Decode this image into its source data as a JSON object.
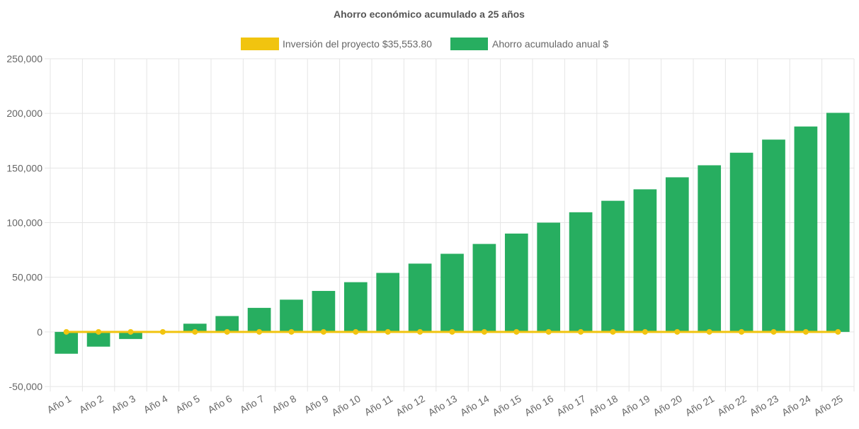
{
  "chart_data": {
    "type": "bar",
    "title": "Ahorro económico acumulado a 25 años",
    "categories": [
      "Año 1",
      "Año 2",
      "Año 3",
      "Año 4",
      "Año 5",
      "Año 6",
      "Año 7",
      "Año 8",
      "Año 9",
      "Año 10",
      "Año 11",
      "Año 12",
      "Año 13",
      "Año 14",
      "Año 15",
      "Año 16",
      "Año 17",
      "Año 18",
      "Año 19",
      "Año 20",
      "Año 21",
      "Año 22",
      "Año 23",
      "Año 24",
      "Año 25"
    ],
    "series": [
      {
        "name": "Inversión del proyecto $35,553.80",
        "type": "line",
        "color": "#f1c40f",
        "values": [
          0,
          0,
          0,
          0,
          0,
          0,
          0,
          0,
          0,
          0,
          0,
          0,
          0,
          0,
          0,
          0,
          0,
          0,
          0,
          0,
          0,
          0,
          0,
          0,
          0
        ]
      },
      {
        "name": "Ahorro acumulado anual $",
        "type": "bar",
        "color": "#27ae60",
        "values": [
          -20000,
          -13500,
          -6500,
          0,
          7500,
          14500,
          22000,
          29500,
          37500,
          45500,
          54000,
          62500,
          71500,
          80500,
          90000,
          100000,
          109500,
          120000,
          130500,
          141500,
          152500,
          164000,
          176000,
          188000,
          200500
        ]
      }
    ],
    "yticks": [
      "250,000",
      "200,000",
      "150,000",
      "100,000",
      "50,000",
      "0",
      "-50,000"
    ],
    "ylim": [
      -50000,
      250000
    ],
    "grid": true,
    "legend_position": "top"
  }
}
